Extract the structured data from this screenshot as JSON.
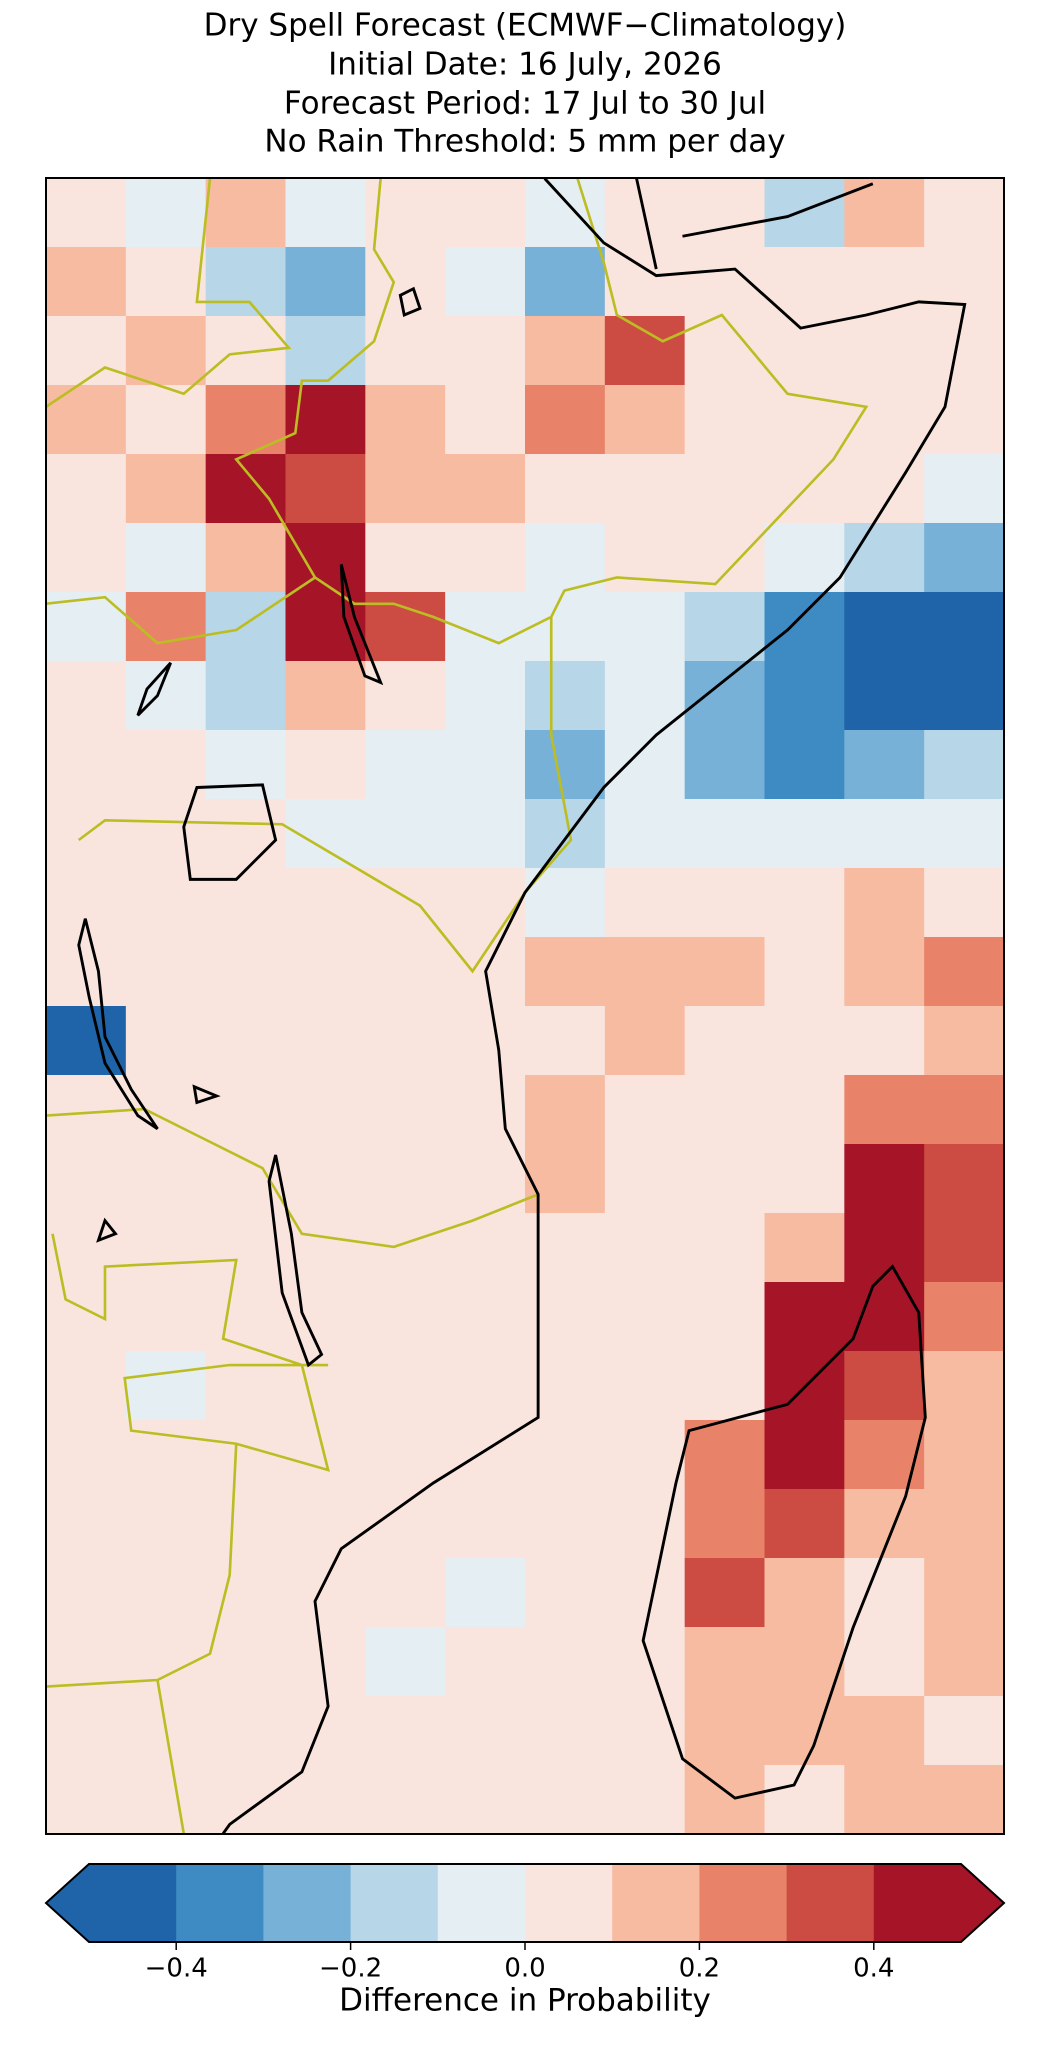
{
  "title": [
    "Dry Spell Forecast (ECMWF−Climatology)",
    "Initial Date: 16 July, 2026",
    "Forecast Period: 17 Jul to 30 Jul",
    "No Rain Threshold: 5 mm per day"
  ],
  "colorbar": {
    "label": "Difference in Probability",
    "extend": "both",
    "boundaries": [
      -0.5,
      -0.4,
      -0.3,
      -0.2,
      -0.1,
      0,
      0.1,
      0.2,
      0.3,
      0.4,
      0.5
    ],
    "colors": [
      "#1f63a8",
      "#3e8bc4",
      "#78b1d7",
      "#b7d7e8",
      "#e5eef3",
      "#f9e5de",
      "#f7bba1",
      "#e8836a",
      "#cc4c44",
      "#a61428"
    ],
    "ticks": [
      {
        "value": -0.4,
        "label": "−0.4"
      },
      {
        "value": -0.2,
        "label": "−0.2"
      },
      {
        "value": 0,
        "label": "0.0"
      },
      0.2,
      0.4
    ]
  },
  "field": [
    [
      0.05,
      -0.05,
      0.15,
      -0.05,
      0.05,
      0.05,
      -0.05,
      0.05,
      0.05,
      -0.15,
      0.15,
      0.05
    ],
    [
      0.15,
      0.05,
      -0.15,
      -0.25,
      0.05,
      -0.05,
      -0.25,
      0.05,
      0.05,
      0.05,
      0.05,
      0.05
    ],
    [
      0.05,
      0.15,
      0.05,
      -0.15,
      0.05,
      0.05,
      0.15,
      0.35,
      0.05,
      0.05,
      0.05,
      0.05
    ],
    [
      0.15,
      0.05,
      0.25,
      0.45,
      0.15,
      0.05,
      0.25,
      0.15,
      0.05,
      0.05,
      0.05,
      0.05
    ],
    [
      0.05,
      0.15,
      0.45,
      0.35,
      0.15,
      0.15,
      0.05,
      0.05,
      0.05,
      0.05,
      0.05,
      -0.05
    ],
    [
      0.05,
      -0.05,
      0.15,
      0.45,
      0.05,
      0.05,
      -0.05,
      0.05,
      0.05,
      -0.05,
      -0.15,
      -0.25
    ],
    [
      -0.05,
      0.25,
      -0.15,
      0.45,
      0.35,
      -0.05,
      -0.05,
      -0.05,
      -0.15,
      -0.35,
      -0.45,
      -0.45
    ],
    [
      0.05,
      -0.05,
      -0.15,
      0.15,
      0.05,
      -0.05,
      -0.15,
      -0.05,
      -0.25,
      -0.35,
      -0.45,
      -0.45
    ],
    [
      0.05,
      0.05,
      -0.05,
      0.05,
      -0.05,
      -0.05,
      -0.25,
      -0.05,
      -0.25,
      -0.35,
      -0.25,
      -0.15
    ],
    [
      0.05,
      0.05,
      0.05,
      -0.05,
      -0.05,
      -0.05,
      -0.15,
      -0.05,
      -0.05,
      -0.05,
      -0.05,
      -0.05
    ],
    [
      0.05,
      0.05,
      0.05,
      0.05,
      0.05,
      0.05,
      -0.05,
      0.05,
      0.05,
      0.05,
      0.15,
      0.05
    ],
    [
      0.05,
      0.05,
      0.05,
      0.05,
      0.05,
      0.05,
      0.15,
      0.15,
      0.15,
      0.05,
      0.15,
      0.25
    ],
    [
      -0.45,
      0.05,
      0.05,
      0.05,
      0.05,
      0.05,
      0.05,
      0.15,
      0.05,
      0.05,
      0.05,
      0.15
    ],
    [
      0.05,
      0.05,
      0.05,
      0.05,
      0.05,
      0.05,
      0.15,
      0.05,
      0.05,
      0.05,
      0.25,
      0.25
    ],
    [
      0.05,
      0.05,
      0.05,
      0.05,
      0.05,
      0.05,
      0.15,
      0.05,
      0.05,
      0.05,
      0.45,
      0.35
    ],
    [
      0.05,
      0.05,
      0.05,
      0.05,
      0.05,
      0.05,
      0.05,
      0.05,
      0.05,
      0.15,
      0.45,
      0.35
    ],
    [
      0.05,
      0.05,
      0.05,
      0.05,
      0.05,
      0.05,
      0.05,
      0.05,
      0.05,
      0.45,
      0.45,
      0.25
    ],
    [
      0.05,
      -0.05,
      0.05,
      0.05,
      0.05,
      0.05,
      0.05,
      0.05,
      0.05,
      0.45,
      0.35,
      0.15
    ],
    [
      0.05,
      0.05,
      0.05,
      0.05,
      0.05,
      0.05,
      0.05,
      0.05,
      0.25,
      0.45,
      0.25,
      0.15
    ],
    [
      0.05,
      0.05,
      0.05,
      0.05,
      0.05,
      0.05,
      0.05,
      0.05,
      0.25,
      0.35,
      0.15,
      0.15
    ],
    [
      0.05,
      0.05,
      0.05,
      0.05,
      0.05,
      -0.05,
      0.05,
      0.05,
      0.35,
      0.15,
      0.05,
      0.15
    ],
    [
      0.05,
      0.05,
      0.05,
      0.05,
      -0.05,
      0.05,
      0.05,
      0.05,
      0.15,
      0.15,
      0.05,
      0.15
    ],
    [
      0.05,
      0.05,
      0.05,
      0.05,
      0.05,
      0.05,
      0.05,
      0.05,
      0.15,
      0.15,
      0.15,
      0.05
    ],
    [
      0.05,
      0.05,
      0.05,
      0.05,
      0.05,
      0.05,
      0.05,
      0.05,
      0.15,
      0.05,
      0.15,
      0.15
    ]
  ]
}
